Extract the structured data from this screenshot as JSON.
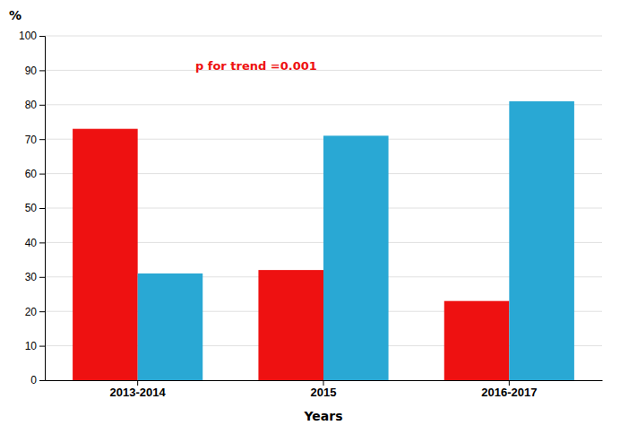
{
  "chart_data": {
    "type": "bar",
    "categories": [
      "2013-2014",
      "2015",
      "2016-2017"
    ],
    "series": [
      {
        "color": "#ee1111",
        "values": [
          73,
          32,
          23
        ]
      },
      {
        "color": "#29a8d4",
        "values": [
          31,
          71,
          81
        ]
      }
    ],
    "xlabel": "Years",
    "ylabel": "%",
    "annotations": [
      {
        "text": "p for trend =0.001",
        "color": "#ee1111"
      }
    ],
    "ylim": [
      0,
      100
    ],
    "yticks": [
      0,
      10,
      20,
      30,
      40,
      50,
      60,
      70,
      80,
      90,
      100
    ],
    "grid": true
  }
}
